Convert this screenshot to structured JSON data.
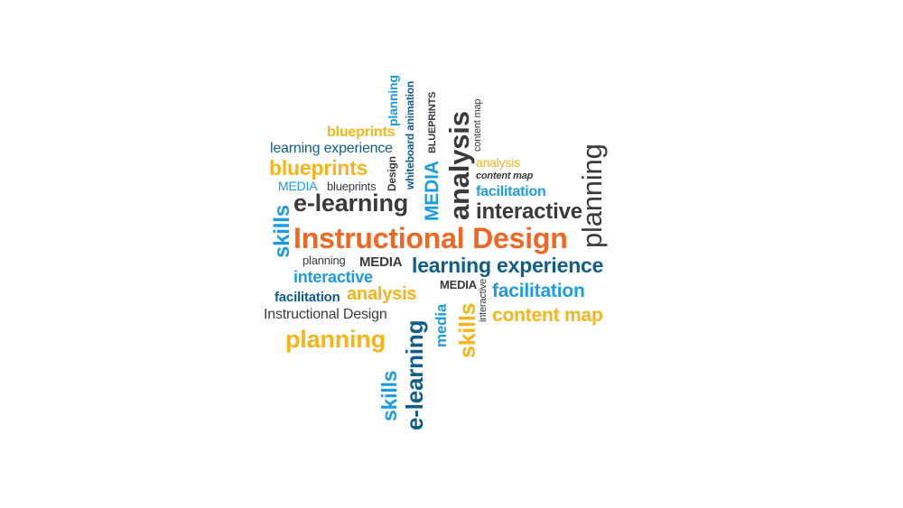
{
  "colors": {
    "orange": "#f26522",
    "yellow": "#f7b418",
    "blue": "#1b9ce2",
    "navy": "#0f5e8a",
    "dark": "#3a3a3a"
  },
  "words": [
    {
      "text": "Instructional Design"
    },
    {
      "text": "e-learning"
    },
    {
      "text": "blueprints"
    },
    {
      "text": "blueprints"
    },
    {
      "text": "learning experience"
    },
    {
      "text": "MEDIA"
    },
    {
      "text": "blueprints"
    },
    {
      "text": "skills"
    },
    {
      "text": "planning"
    },
    {
      "text": "whiteboard animation"
    },
    {
      "text": "Design"
    },
    {
      "text": "MEDIA"
    },
    {
      "text": "BLUEPRINTS"
    },
    {
      "text": "analysis"
    },
    {
      "text": "content map"
    },
    {
      "text": "analysis"
    },
    {
      "text": "content map"
    },
    {
      "text": "facilitation"
    },
    {
      "text": "interactive"
    },
    {
      "text": "planning"
    },
    {
      "text": "planning"
    },
    {
      "text": "MEDIA"
    },
    {
      "text": "learning experience"
    },
    {
      "text": "interactive"
    },
    {
      "text": "facilitation"
    },
    {
      "text": "analysis"
    },
    {
      "text": "MEDIA"
    },
    {
      "text": "facilitation"
    },
    {
      "text": "Instructional Design"
    },
    {
      "text": "planning"
    },
    {
      "text": "content map"
    },
    {
      "text": "skills"
    },
    {
      "text": "e-learning"
    },
    {
      "text": "media"
    },
    {
      "text": "skills"
    },
    {
      "text": "interactive"
    }
  ]
}
